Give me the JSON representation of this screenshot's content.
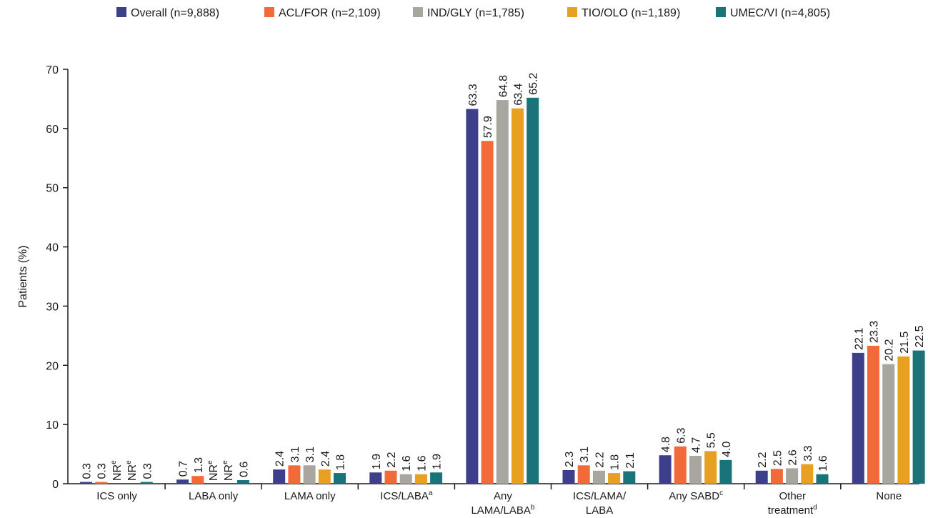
{
  "chart_data": {
    "type": "bar",
    "ylabel": "Patients (%)",
    "ylim": [
      0,
      70
    ],
    "yticks": [
      "0",
      "10",
      "20",
      "30",
      "40",
      "50",
      "60",
      "70"
    ],
    "grid": false,
    "legend_position": "top",
    "categories": [
      {
        "main": "ICS only",
        "sup": "",
        "line2": "",
        "line2_sup": ""
      },
      {
        "main": "LABA only",
        "sup": "",
        "line2": "",
        "line2_sup": ""
      },
      {
        "main": "LAMA only",
        "sup": "",
        "line2": "",
        "line2_sup": ""
      },
      {
        "main": "ICS/LABA",
        "sup": "a",
        "line2": "",
        "line2_sup": ""
      },
      {
        "main": "Any",
        "sup": "",
        "line2": "LAMA/LABA",
        "line2_sup": "b"
      },
      {
        "main": "ICS/LAMA/",
        "sup": "",
        "line2": "LABA",
        "line2_sup": ""
      },
      {
        "main": "Any SABD",
        "sup": "c",
        "line2": "",
        "line2_sup": ""
      },
      {
        "main": "Other",
        "sup": "",
        "line2": "treatment",
        "line2_sup": "d"
      },
      {
        "main": "None",
        "sup": "",
        "line2": "",
        "line2_sup": ""
      }
    ],
    "series": [
      {
        "name": "Overall (n=9,888)",
        "color": "#3d3f8a",
        "values": [
          0.3,
          0.7,
          2.4,
          1.9,
          63.3,
          2.3,
          4.8,
          2.2,
          22.1
        ],
        "labels": [
          "0.3",
          "0.7",
          "2.4",
          "1.9",
          "63.3",
          "2.3",
          "4.8",
          "2.2",
          "22.1"
        ]
      },
      {
        "name": "ACL/FOR (n=2,109)",
        "color": "#f26a3a",
        "values": [
          0.3,
          1.3,
          3.1,
          2.2,
          57.9,
          3.1,
          6.3,
          2.5,
          23.3
        ],
        "labels": [
          "0.3",
          "1.3",
          "3.1",
          "2.2",
          "57.9",
          "3.1",
          "6.3",
          "2.5",
          "23.3"
        ]
      },
      {
        "name": "IND/GLY (n=1,785)",
        "color": "#a8a69f",
        "values": [
          null,
          null,
          3.1,
          1.6,
          64.8,
          2.2,
          4.7,
          2.6,
          20.2
        ],
        "labels": [
          "NR",
          "NR",
          "3.1",
          "1.6",
          "64.8",
          "2.2",
          "4.7",
          "2.6",
          "20.2"
        ]
      },
      {
        "name": "TIO/OLO (n=1,189)",
        "color": "#e8a020",
        "values": [
          null,
          null,
          2.4,
          1.6,
          63.4,
          1.8,
          5.5,
          3.3,
          21.5
        ],
        "labels": [
          "NR",
          "NR",
          "2.4",
          "1.6",
          "63.4",
          "1.8",
          "5.5",
          "3.3",
          "21.5"
        ]
      },
      {
        "name": "UMEC/VI (n=4,805)",
        "color": "#1a7379",
        "values": [
          0.3,
          0.6,
          1.8,
          1.9,
          65.2,
          2.1,
          4.0,
          1.6,
          22.5
        ],
        "labels": [
          "0.3",
          "0.6",
          "1.8",
          "1.9",
          "65.2",
          "2.1",
          "4.0",
          "1.6",
          "22.5"
        ]
      }
    ],
    "nr_superscript": "e"
  }
}
